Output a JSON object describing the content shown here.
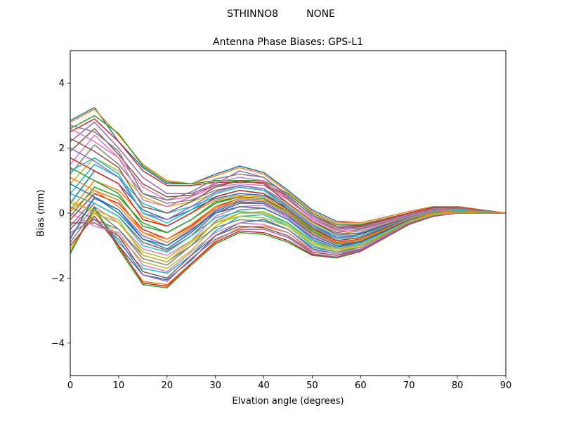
{
  "figure": {
    "suptitle": "STHINNO8         NONE"
  },
  "chart_data": {
    "type": "line",
    "title": "Antenna Phase Biases: GPS-L1",
    "xlabel": "Elvation angle (degrees)",
    "ylabel": "Bias (mm)",
    "xlim": [
      0,
      90
    ],
    "ylim": [
      -5,
      5
    ],
    "xticks": [
      0,
      10,
      20,
      30,
      40,
      50,
      60,
      70,
      80,
      90
    ],
    "xtick_labels": [
      "0",
      "10",
      "20",
      "30",
      "40",
      "50",
      "60",
      "70",
      "80",
      "90"
    ],
    "yticks": [
      -4,
      -2,
      0,
      2,
      4
    ],
    "ytick_labels": [
      "−4",
      "−2",
      "0",
      "2",
      "4"
    ],
    "grid": false,
    "legend": "none",
    "x": [
      0,
      5,
      10,
      15,
      20,
      25,
      30,
      35,
      40,
      45,
      50,
      55,
      60,
      70,
      75,
      80,
      90
    ],
    "palette": [
      "#1f77b4",
      "#ff7f0e",
      "#2ca02c",
      "#d62728",
      "#9467bd",
      "#8c564b",
      "#e377c2",
      "#7f7f7f",
      "#bcbd22",
      "#17becf"
    ],
    "series": [
      {
        "values": [
          2.85,
          3.25,
          2.2,
          1.4,
          0.9,
          0.9,
          1.2,
          1.45,
          1.25,
          0.7,
          0.1,
          -0.25,
          -0.3,
          0.05,
          0.2,
          0.2,
          0.0
        ]
      },
      {
        "values": [
          2.8,
          3.2,
          2.4,
          1.5,
          1.0,
          0.9,
          1.15,
          1.4,
          1.2,
          0.65,
          0.05,
          -0.3,
          -0.3,
          0.05,
          0.2,
          0.2,
          0.0
        ]
      },
      {
        "values": [
          2.6,
          3.0,
          2.45,
          1.45,
          0.95,
          0.9,
          1.0,
          1.0,
          1.0,
          0.6,
          0.0,
          -0.35,
          -0.35,
          0.0,
          0.18,
          0.18,
          0.0
        ]
      },
      {
        "values": [
          2.5,
          2.9,
          2.2,
          1.3,
          0.85,
          0.85,
          0.95,
          0.95,
          0.95,
          0.5,
          -0.05,
          -0.4,
          -0.38,
          0.0,
          0.17,
          0.18,
          0.0
        ]
      },
      {
        "values": [
          2.2,
          2.8,
          2.0,
          1.1,
          0.6,
          0.6,
          0.9,
          1.3,
          1.1,
          0.55,
          -0.1,
          -0.45,
          -0.4,
          -0.02,
          0.15,
          0.16,
          0.0
        ]
      },
      {
        "values": [
          1.9,
          2.6,
          1.8,
          0.9,
          0.5,
          0.55,
          0.85,
          1.0,
          0.9,
          0.45,
          -0.15,
          -0.5,
          -0.42,
          -0.03,
          0.14,
          0.15,
          0.0
        ]
      },
      {
        "values": [
          1.5,
          2.4,
          1.7,
          0.8,
          0.4,
          0.5,
          0.8,
          0.9,
          0.85,
          0.4,
          -0.2,
          -0.55,
          -0.45,
          -0.05,
          0.13,
          0.15,
          0.0
        ]
      },
      {
        "values": [
          1.2,
          2.1,
          1.5,
          0.6,
          0.3,
          0.4,
          0.7,
          0.85,
          0.75,
          0.3,
          -0.25,
          -0.6,
          -0.5,
          -0.07,
          0.12,
          0.14,
          0.0
        ]
      },
      {
        "values": [
          0.9,
          1.7,
          1.3,
          0.5,
          0.2,
          0.35,
          0.6,
          0.8,
          0.7,
          0.25,
          -0.3,
          -0.65,
          -0.55,
          -0.08,
          0.1,
          0.13,
          0.0
        ]
      },
      {
        "values": [
          0.6,
          1.5,
          1.1,
          0.3,
          0.0,
          0.2,
          0.5,
          0.7,
          0.6,
          0.2,
          -0.35,
          -0.7,
          -0.6,
          -0.1,
          0.09,
          0.12,
          0.0
        ]
      },
      {
        "values": [
          0.3,
          1.3,
          0.9,
          0.1,
          -0.2,
          0.1,
          0.45,
          0.6,
          0.55,
          0.15,
          -0.4,
          -0.75,
          -0.65,
          -0.12,
          0.08,
          0.11,
          0.0
        ]
      },
      {
        "values": [
          0.1,
          1.0,
          0.7,
          -0.1,
          -0.4,
          0.0,
          0.4,
          0.55,
          0.5,
          0.1,
          -0.45,
          -0.8,
          -0.7,
          -0.13,
          0.07,
          0.1,
          0.0
        ]
      },
      {
        "values": [
          -0.1,
          0.8,
          0.5,
          -0.3,
          -0.6,
          -0.2,
          0.3,
          0.5,
          0.45,
          0.05,
          -0.5,
          -0.85,
          -0.75,
          -0.15,
          0.06,
          0.09,
          0.0
        ]
      },
      {
        "values": [
          -0.2,
          0.6,
          0.3,
          -0.5,
          -0.8,
          -0.4,
          0.2,
          0.45,
          0.4,
          0.0,
          -0.55,
          -0.9,
          -0.8,
          -0.17,
          0.05,
          0.08,
          0.0
        ]
      },
      {
        "values": [
          -0.4,
          0.45,
          0.1,
          -0.7,
          -1.0,
          -0.55,
          0.1,
          0.4,
          0.35,
          -0.05,
          -0.6,
          -0.95,
          -0.85,
          -0.18,
          0.04,
          0.07,
          0.0
        ]
      },
      {
        "values": [
          -0.5,
          0.3,
          -0.1,
          -0.9,
          -1.15,
          -0.7,
          0.0,
          0.3,
          0.3,
          -0.1,
          -0.65,
          -1.0,
          -0.9,
          -0.2,
          0.03,
          0.06,
          0.0
        ]
      },
      {
        "values": [
          -0.7,
          0.2,
          -0.3,
          -1.1,
          -1.3,
          -0.85,
          -0.1,
          0.2,
          0.25,
          -0.15,
          -0.7,
          -1.05,
          -0.95,
          -0.22,
          0.02,
          0.05,
          0.0
        ]
      },
      {
        "values": [
          -0.9,
          0.1,
          -0.5,
          -1.3,
          -1.5,
          -1.0,
          -0.25,
          0.1,
          0.15,
          -0.2,
          -0.8,
          -1.1,
          -1.0,
          -0.25,
          0.0,
          0.04,
          0.0
        ]
      },
      {
        "values": [
          -1.1,
          0.0,
          -0.7,
          -1.5,
          -1.7,
          -1.15,
          -0.4,
          0.0,
          0.05,
          -0.3,
          -0.9,
          -1.15,
          -1.05,
          -0.27,
          -0.02,
          0.03,
          0.0
        ]
      },
      {
        "values": [
          -1.2,
          0.1,
          -0.9,
          -1.7,
          -1.85,
          -1.3,
          -0.55,
          -0.1,
          -0.05,
          -0.4,
          -1.0,
          -1.2,
          -1.1,
          -0.3,
          -0.04,
          0.02,
          0.0
        ]
      },
      {
        "values": [
          -1.25,
          0.15,
          -1.0,
          -1.9,
          -2.05,
          -1.45,
          -0.7,
          -0.3,
          -0.2,
          -0.5,
          -1.1,
          -1.25,
          -1.12,
          -0.32,
          -0.06,
          0.01,
          0.0
        ]
      },
      {
        "values": [
          -1.2,
          0.1,
          -1.05,
          -2.1,
          -2.2,
          -1.55,
          -0.85,
          -0.45,
          -0.4,
          -0.6,
          -1.2,
          -1.3,
          -1.15,
          -0.33,
          -0.08,
          0.0,
          0.0
        ]
      },
      {
        "values": [
          -1.25,
          0.2,
          -1.1,
          -2.2,
          -2.3,
          -1.6,
          -0.95,
          -0.6,
          -0.65,
          -0.9,
          -1.3,
          -1.38,
          -1.18,
          -0.35,
          -0.1,
          0.0,
          0.0
        ]
      },
      {
        "values": [
          -1.0,
          -0.1,
          -1.0,
          -2.15,
          -2.25,
          -1.55,
          -0.9,
          -0.55,
          -0.6,
          -0.85,
          -1.28,
          -1.36,
          -1.17,
          -0.34,
          -0.09,
          0.0,
          0.0
        ]
      },
      {
        "values": [
          -0.6,
          -0.2,
          -0.8,
          -1.9,
          -2.1,
          -1.4,
          -0.8,
          -0.5,
          -0.5,
          -0.75,
          -1.25,
          -1.35,
          -1.15,
          -0.33,
          -0.08,
          0.0,
          0.0
        ]
      },
      {
        "values": [
          -0.3,
          -0.3,
          -0.7,
          -1.8,
          -2.0,
          -1.3,
          -0.7,
          -0.4,
          -0.45,
          -0.7,
          -1.2,
          -1.3,
          -1.12,
          -0.32,
          -0.07,
          0.01,
          0.0
        ]
      },
      {
        "values": [
          0.0,
          -0.4,
          -0.6,
          -1.6,
          -1.8,
          -1.2,
          -0.6,
          -0.3,
          -0.35,
          -0.6,
          -1.15,
          -1.25,
          -1.1,
          -0.3,
          -0.06,
          0.01,
          0.0
        ]
      },
      {
        "values": [
          0.2,
          -0.2,
          -0.5,
          -1.4,
          -1.6,
          -1.0,
          -0.45,
          -0.2,
          -0.25,
          -0.5,
          -1.05,
          -1.2,
          -1.05,
          -0.28,
          -0.05,
          0.02,
          0.0
        ]
      },
      {
        "values": [
          0.4,
          0.0,
          -0.3,
          -1.2,
          -1.4,
          -0.85,
          -0.3,
          -0.1,
          -0.15,
          -0.4,
          -0.95,
          -1.15,
          -1.0,
          -0.26,
          -0.04,
          0.03,
          0.0
        ]
      },
      {
        "values": [
          0.6,
          0.3,
          -0.1,
          -1.0,
          -1.2,
          -0.7,
          -0.15,
          0.05,
          0.0,
          -0.3,
          -0.85,
          -1.1,
          -0.95,
          -0.24,
          -0.03,
          0.04,
          0.0
        ]
      },
      {
        "values": [
          0.9,
          0.5,
          0.1,
          -0.8,
          -1.0,
          -0.5,
          0.0,
          0.2,
          0.15,
          -0.2,
          -0.75,
          -1.05,
          -0.9,
          -0.22,
          -0.02,
          0.05,
          0.0
        ]
      },
      {
        "values": [
          1.1,
          0.7,
          0.4,
          -0.6,
          -0.8,
          -0.35,
          0.2,
          0.35,
          0.3,
          -0.1,
          -0.65,
          -1.0,
          -0.85,
          -0.2,
          0.0,
          0.06,
          0.0
        ]
      },
      {
        "values": [
          1.4,
          1.0,
          0.6,
          -0.4,
          -0.6,
          -0.2,
          0.35,
          0.5,
          0.45,
          0.0,
          -0.55,
          -0.95,
          -0.8,
          -0.18,
          0.02,
          0.07,
          0.0
        ]
      },
      {
        "values": [
          1.7,
          1.3,
          0.9,
          -0.2,
          -0.4,
          0.0,
          0.5,
          0.7,
          0.6,
          0.1,
          -0.45,
          -0.85,
          -0.75,
          -0.16,
          0.03,
          0.08,
          0.0
        ]
      },
      {
        "values": [
          2.0,
          1.6,
          1.1,
          0.0,
          -0.2,
          0.2,
          0.65,
          0.85,
          0.75,
          0.2,
          -0.35,
          -0.75,
          -0.7,
          -0.14,
          0.05,
          0.09,
          0.0
        ]
      },
      {
        "values": [
          2.3,
          1.9,
          1.4,
          0.2,
          0.0,
          0.35,
          0.8,
          1.0,
          0.9,
          0.3,
          -0.25,
          -0.65,
          -0.62,
          -0.12,
          0.07,
          0.1,
          0.0
        ]
      },
      {
        "values": [
          2.6,
          2.2,
          1.7,
          0.4,
          0.2,
          0.5,
          0.95,
          1.1,
          1.0,
          0.4,
          -0.15,
          -0.55,
          -0.55,
          -0.1,
          0.09,
          0.12,
          0.0
        ]
      },
      {
        "values": [
          2.7,
          2.5,
          1.9,
          0.6,
          0.4,
          0.65,
          1.05,
          1.2,
          1.1,
          0.5,
          -0.05,
          -0.45,
          -0.48,
          -0.07,
          0.11,
          0.14,
          0.0
        ]
      },
      {
        "values": [
          0.3,
          0.1,
          -0.2,
          -1.3,
          -1.5,
          -0.9,
          -0.3,
          0.0,
          0.0,
          -0.35,
          -0.9,
          -1.1,
          -0.98,
          -0.25,
          -0.03,
          0.03,
          0.0
        ]
      },
      {
        "values": [
          1.3,
          1.7,
          1.2,
          0.0,
          -0.3,
          0.1,
          0.6,
          0.8,
          0.7,
          0.15,
          -0.4,
          -0.8,
          -0.7,
          -0.15,
          0.05,
          0.1,
          0.0
        ]
      },
      {
        "values": [
          -0.8,
          0.5,
          0.0,
          -0.8,
          -1.1,
          -0.6,
          0.05,
          0.35,
          0.3,
          -0.1,
          -0.65,
          -1.0,
          -0.88,
          -0.2,
          0.02,
          0.06,
          0.0
        ]
      },
      {
        "values": [
          0.05,
          0.7,
          0.2,
          -0.6,
          -0.9,
          -0.45,
          0.15,
          0.45,
          0.4,
          0.0,
          -0.6,
          -0.92,
          -0.82,
          -0.18,
          0.03,
          0.07,
          0.0
        ]
      }
    ]
  }
}
